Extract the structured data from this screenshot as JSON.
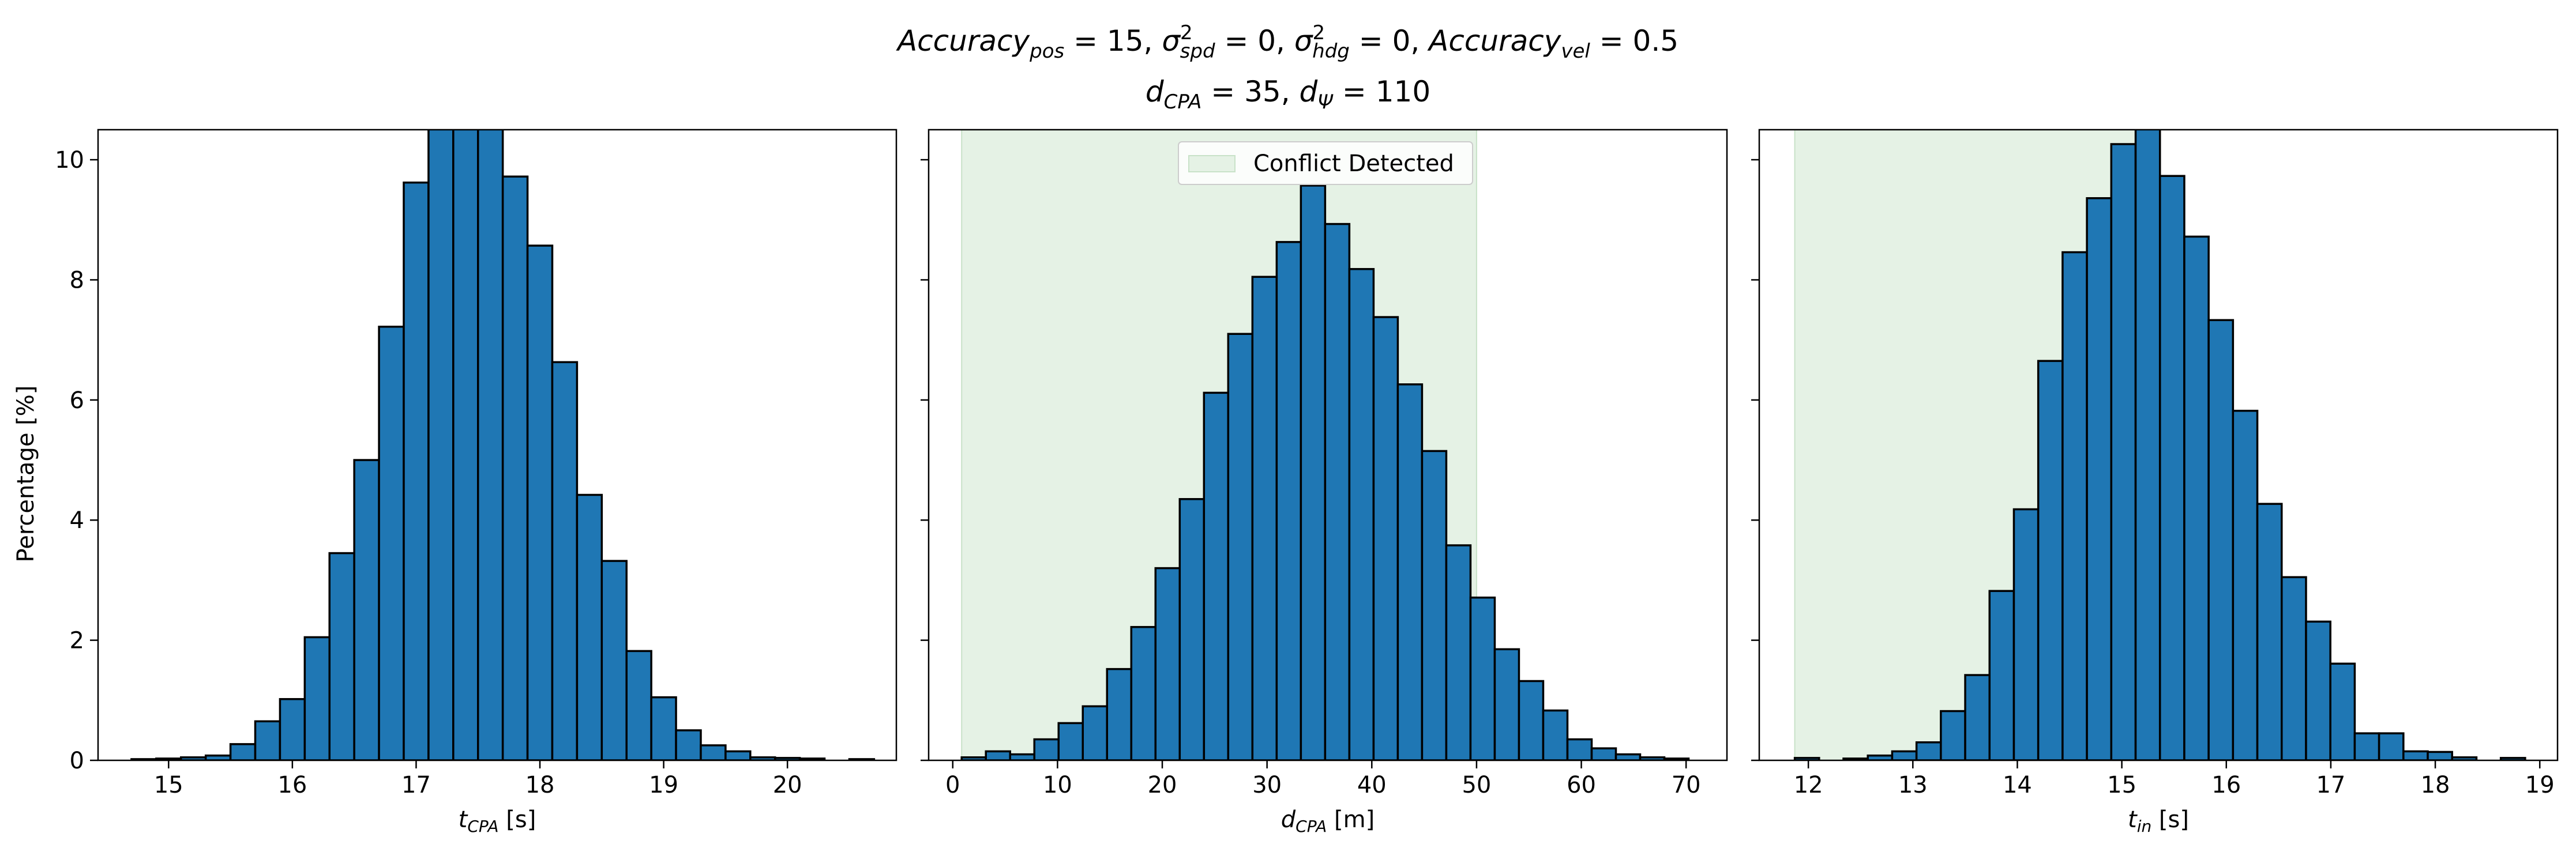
{
  "title": {
    "line1": [
      {
        "t": "Accuracy",
        "sub": "pos",
        "rest": " = 15, "
      },
      {
        "t": "σ",
        "sup": "2",
        "sub": "spd",
        "rest": " = 0, "
      },
      {
        "t": "σ",
        "sup": "2",
        "sub": "hdg",
        "rest": " = 0, "
      },
      {
        "t": "Accuracy",
        "sub": "vel",
        "rest": " = 0.5"
      }
    ],
    "line2": [
      {
        "t": "d",
        "sub": "CPA",
        "rest": " = 35, "
      },
      {
        "t": "d",
        "sub": "Ψ",
        "rest": " = 110"
      }
    ]
  },
  "ylabel": "Percentage [%]",
  "chart_data": [
    {
      "type": "bar",
      "panel": "left",
      "xlabel_var": "t",
      "xlabel_sub": "CPA",
      "xlabel_unit": " [s]",
      "xlim": [
        14.43,
        20.88
      ],
      "ylim": [
        0,
        10.5
      ],
      "xticks": [
        15,
        16,
        17,
        18,
        19,
        20
      ],
      "yticks": [
        0,
        2,
        4,
        6,
        8,
        10
      ],
      "bin_start": 14.7,
      "bin_width": 0.2,
      "values": [
        0.02,
        0.03,
        0.05,
        0.08,
        0.27,
        0.65,
        1.02,
        2.05,
        3.45,
        5.0,
        7.22,
        9.62,
        11.0,
        11.3,
        11.1,
        9.72,
        8.57,
        6.63,
        4.42,
        3.32,
        1.82,
        1.05,
        0.5,
        0.25,
        0.15,
        0.05,
        0.04,
        0.03,
        0.0,
        0.02
      ],
      "shade": null,
      "legend": null
    },
    {
      "type": "bar",
      "panel": "middle",
      "xlabel_var": "d",
      "xlabel_sub": "CPA",
      "xlabel_unit": " [m]",
      "xlim": [
        -2.3,
        73.9
      ],
      "ylim": [
        0,
        10.5
      ],
      "xticks": [
        0,
        10,
        20,
        30,
        40,
        50,
        60,
        70
      ],
      "yticks": [
        0,
        2,
        4,
        6,
        8,
        10
      ],
      "bin_start": 0.85,
      "bin_width": 2.313,
      "values": [
        0.05,
        0.15,
        0.1,
        0.35,
        0.62,
        0.9,
        1.52,
        2.22,
        3.2,
        4.35,
        6.12,
        7.1,
        8.05,
        8.63,
        9.57,
        8.93,
        8.18,
        7.38,
        6.26,
        5.15,
        3.58,
        2.71,
        1.85,
        1.32,
        0.83,
        0.35,
        0.2,
        0.1,
        0.05,
        0.03
      ],
      "shade": [
        0.85,
        50.0
      ],
      "legend": "Conflict Detected"
    },
    {
      "type": "bar",
      "panel": "right",
      "xlabel_var": "t",
      "xlabel_sub": "in",
      "xlabel_unit": " [s]",
      "xlim": [
        11.53,
        19.17
      ],
      "ylim": [
        0,
        10.5
      ],
      "xticks": [
        12,
        13,
        14,
        15,
        16,
        17,
        18,
        19
      ],
      "yticks": [
        0,
        2,
        4,
        6,
        8,
        10
      ],
      "bin_start": 11.87,
      "bin_width": 0.233,
      "values": [
        0.04,
        0.0,
        0.03,
        0.08,
        0.15,
        0.3,
        0.82,
        1.42,
        2.82,
        4.18,
        6.65,
        8.46,
        9.36,
        10.26,
        10.8,
        9.73,
        8.72,
        7.33,
        5.82,
        4.27,
        3.05,
        2.31,
        1.61,
        0.45,
        0.45,
        0.15,
        0.14,
        0.05,
        0.0,
        0.04
      ],
      "shade": [
        11.87,
        15.3
      ],
      "legend": null
    }
  ],
  "colors": {
    "bar_fill": "#1f77b4",
    "bar_edge": "#000000",
    "shade": "#e5f2e5",
    "shade_edge": "#c8e2c8"
  }
}
